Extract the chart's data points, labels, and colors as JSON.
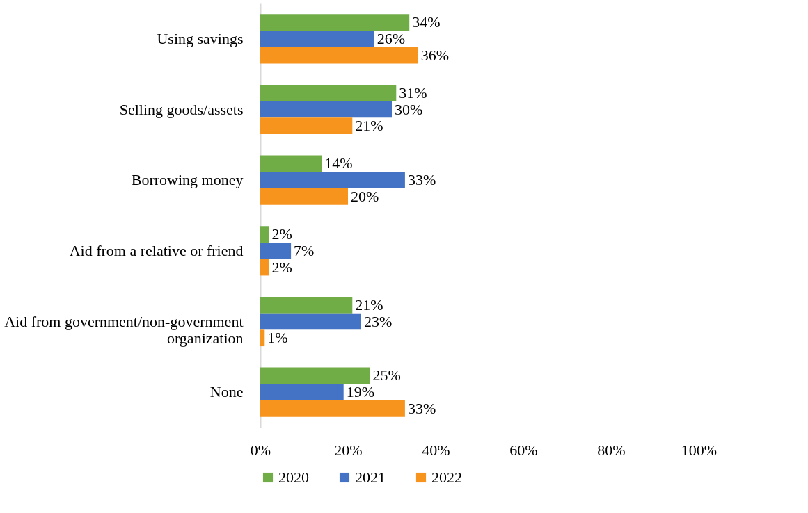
{
  "chart_data": {
    "type": "bar",
    "orientation": "horizontal",
    "categories": [
      "Using savings",
      "Selling goods/assets",
      "Borrowing money",
      "Aid from a relative or friend",
      "Aid from government/non-government organization",
      "None"
    ],
    "series": [
      {
        "name": "2020",
        "color": "#70ad47",
        "values": [
          34,
          31,
          14,
          2,
          21,
          25
        ],
        "value_labels": [
          "34%",
          "31%",
          "14%",
          "2%",
          "21%",
          "25%"
        ]
      },
      {
        "name": "2021",
        "color": "#4472c4",
        "values": [
          26,
          30,
          33,
          7,
          23,
          19
        ],
        "value_labels": [
          "26%",
          "30%",
          "33%",
          "7%",
          "23%",
          "19%"
        ]
      },
      {
        "name": "2022",
        "color": "#f7941d",
        "values": [
          36,
          21,
          20,
          2,
          1,
          33
        ],
        "value_labels": [
          "36%",
          "21%",
          "20%",
          "2%",
          "1%",
          "33%"
        ]
      }
    ],
    "xlim": [
      0,
      100
    ],
    "xticks": [
      {
        "value": 0,
        "label": "0%"
      },
      {
        "value": 20,
        "label": "20%"
      },
      {
        "value": 40,
        "label": "40%"
      },
      {
        "value": 60,
        "label": "60%"
      },
      {
        "value": 80,
        "label": "80%"
      },
      {
        "value": 100,
        "label": "100%"
      }
    ],
    "grid": false,
    "legend": "bottom"
  }
}
